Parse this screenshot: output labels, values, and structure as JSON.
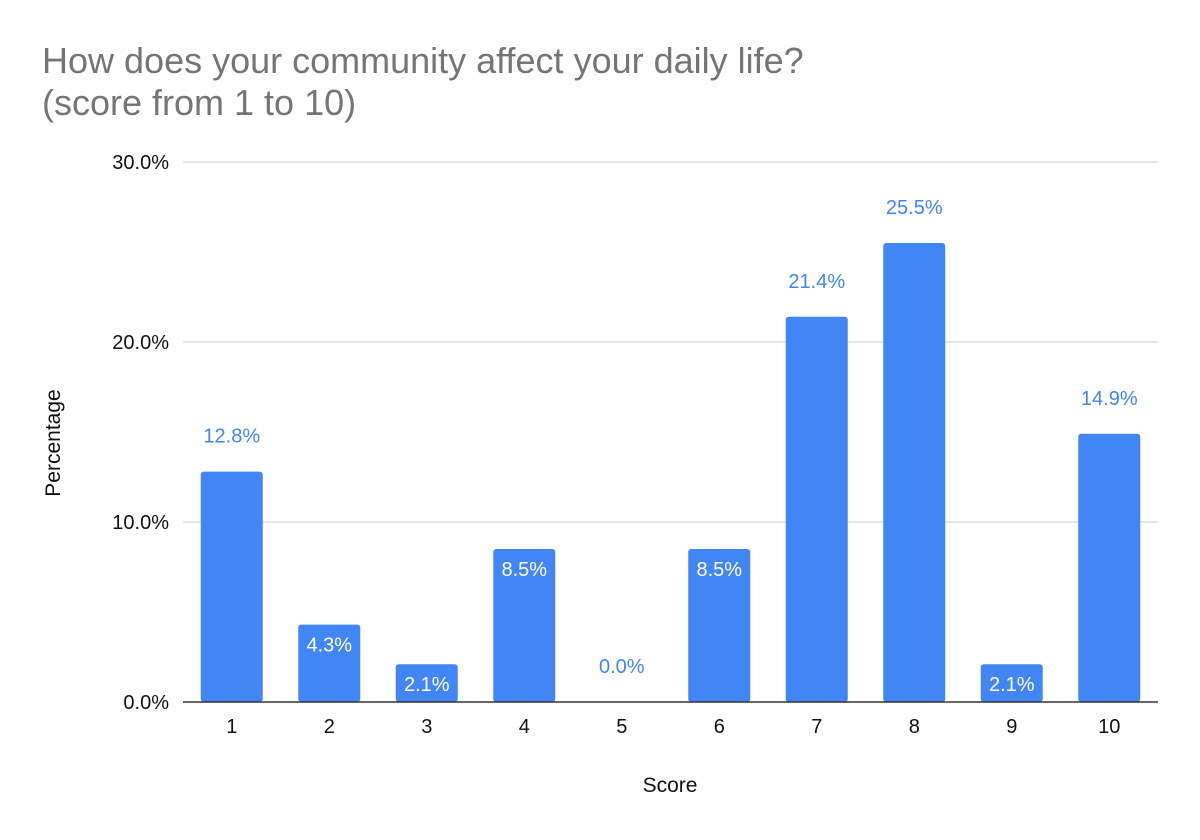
{
  "chart_data": {
    "type": "bar",
    "title_lines": [
      "How does your community affect your daily life?",
      "(score from 1 to 10)"
    ],
    "xlabel": "Score",
    "ylabel": "Percentage",
    "categories": [
      "1",
      "2",
      "3",
      "4",
      "5",
      "6",
      "7",
      "8",
      "9",
      "10"
    ],
    "values": [
      12.8,
      4.3,
      2.1,
      8.5,
      0.0,
      8.5,
      21.4,
      25.5,
      2.1,
      14.9
    ],
    "data_labels": [
      "12.8%",
      "4.3%",
      "2.1%",
      "8.5%",
      "0.0%",
      "8.5%",
      "21.4%",
      "25.5%",
      "2.1%",
      "14.9%"
    ],
    "ylim": [
      0,
      30
    ],
    "yticks": [
      0,
      10,
      20,
      30
    ],
    "ytick_labels": [
      "0.0%",
      "10.0%",
      "20.0%",
      "30.0%"
    ],
    "grid": true,
    "legend": "none",
    "colors": {
      "bar": "#4285F4",
      "label_outside": "#4285F4",
      "label_inside": "#ffffff",
      "grid": "#cccccc",
      "axis": "#333333",
      "title": "#757575"
    }
  }
}
